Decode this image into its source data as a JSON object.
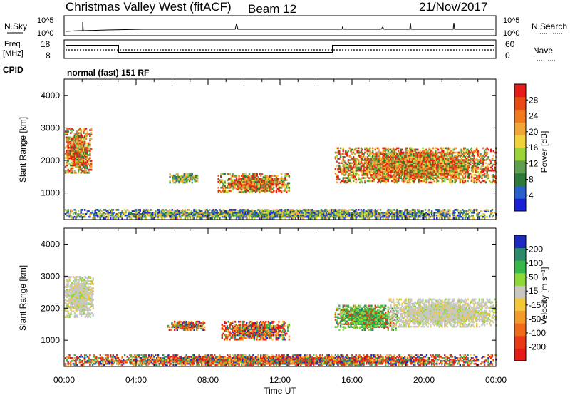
{
  "header": {
    "title": "Christmas Valley West (fitACF)",
    "beam": "Beam 12",
    "date": "21/Nov/2017"
  },
  "strips": {
    "nsky": {
      "label": "N.Sky",
      "ticks": [
        "10^5",
        "10^0"
      ],
      "right_label": "N.Search",
      "right_ticks": [
        "10^5",
        "10^0"
      ]
    },
    "freq": {
      "label": "Freq.",
      "units": "[MHz]",
      "ticks": [
        "18",
        "8"
      ],
      "right_label": "Nave",
      "right_ticks": [
        "60",
        "0"
      ]
    },
    "cpid": {
      "label": "CPID",
      "mode": "normal (fast) 151 RF"
    }
  },
  "chart_data": [
    {
      "type": "heatmap",
      "panel": "power",
      "ylabel": "Slant Range [km]",
      "xlabel": "",
      "x_ticks": [
        "00:00",
        "04:00",
        "08:00",
        "12:00",
        "16:00",
        "20:00",
        "00:00"
      ],
      "y_ticks": [
        1000,
        2000,
        3000,
        4000
      ],
      "ylim": [
        180,
        4500
      ],
      "xlim_hours": [
        0,
        24
      ],
      "colorbar": {
        "label": "Power [dB]",
        "ticks": [
          "4",
          "8",
          "12",
          "16",
          "20",
          "24",
          "28"
        ],
        "range": [
          0,
          32
        ],
        "colors": [
          "#1a20d8",
          "#2a5fd0",
          "#2e7a3a",
          "#5fa050",
          "#9ad43a",
          "#f2d23a",
          "#f2a638",
          "#f07a1e",
          "#e84a14",
          "#e51c18"
        ]
      },
      "features": [
        {
          "t0": 0.0,
          "t1": 1.5,
          "r0": 1600,
          "r1": 3000,
          "level": "high"
        },
        {
          "t0": 5.8,
          "t1": 7.4,
          "r0": 1300,
          "r1": 1600,
          "level": "medium"
        },
        {
          "t0": 8.5,
          "t1": 12.5,
          "r0": 1000,
          "r1": 1600,
          "level": "high"
        },
        {
          "t0": 15.0,
          "t1": 24.0,
          "r0": 1300,
          "r1": 2400,
          "level": "high"
        },
        {
          "t0": 0.0,
          "t1": 24.0,
          "r0": 200,
          "r1": 500,
          "level": "low"
        }
      ]
    },
    {
      "type": "heatmap",
      "panel": "velocity",
      "ylabel": "Slant Range [km]",
      "xlabel": "Time UT",
      "x_ticks": [
        "00:00",
        "04:00",
        "08:00",
        "12:00",
        "16:00",
        "20:00",
        "00:00"
      ],
      "y_ticks": [
        1000,
        2000,
        3000,
        4000
      ],
      "ylim": [
        180,
        4500
      ],
      "xlim_hours": [
        0,
        24
      ],
      "colorbar": {
        "label": "Velocity [m s⁻¹]",
        "ticks": [
          "200",
          "100",
          "50",
          "15",
          "-15",
          "-50",
          "-100",
          "-200"
        ],
        "colors": [
          "#1c2ac0",
          "#2a8a6a",
          "#38b84a",
          "#8cd838",
          "#c8c8c0",
          "#f2c83a",
          "#f29a2a",
          "#ef6a1a",
          "#e83a14",
          "#e51c18"
        ]
      },
      "features": [
        {
          "t0": 0.0,
          "t1": 1.6,
          "r0": 1700,
          "r1": 3000,
          "level": "ground"
        },
        {
          "t0": 5.7,
          "t1": 7.8,
          "r0": 1300,
          "r1": 1600,
          "level": "negative"
        },
        {
          "t0": 8.7,
          "t1": 12.5,
          "r0": 1000,
          "r1": 1600,
          "level": "negative"
        },
        {
          "t0": 15.0,
          "t1": 18.5,
          "r0": 1300,
          "r1": 2100,
          "level": "positive"
        },
        {
          "t0": 18.0,
          "t1": 24.0,
          "r0": 1400,
          "r1": 2300,
          "level": "ground"
        },
        {
          "t0": 0.0,
          "t1": 24.0,
          "r0": 200,
          "r1": 550,
          "level": "negative"
        }
      ]
    }
  ]
}
